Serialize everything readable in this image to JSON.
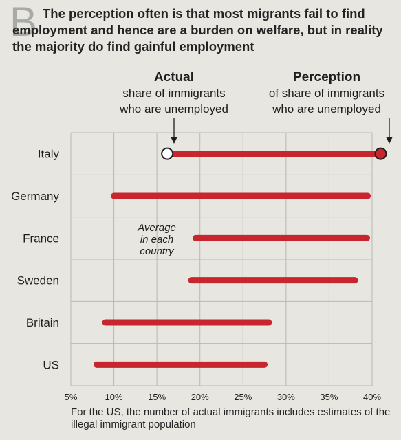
{
  "headline": {
    "dropcap": "B",
    "text": "The perception often is that most migrants fail to find employment and hence are a burden on welfare, but in reality the majority do find gainful employment"
  },
  "annotations": {
    "actual_title": "Actual",
    "actual_sub1": "share of immigrants",
    "actual_sub2": "who are unemployed",
    "perception_title": "Perception",
    "perception_sub1": "of share of immigrants",
    "perception_sub2": "who are unemployed",
    "average_1": "Average",
    "average_2": "in each",
    "average_3": "country"
  },
  "footnote": "For the US, the number of actual immigrants includes estimates of the illegal immigrant population",
  "colors": {
    "bar": "#c8262e",
    "grid": "#b8b8b4",
    "text": "#1e1e1e"
  },
  "chart_data": {
    "type": "dumbbell",
    "categories": [
      "Italy",
      "Germany",
      "France",
      "Sweden",
      "Britain",
      "US"
    ],
    "series": [
      {
        "name": "Actual",
        "values": [
          16.2,
          10.0,
          19.5,
          19.0,
          9.0,
          8.0
        ]
      },
      {
        "name": "Perception",
        "values": [
          41.0,
          39.5,
          39.4,
          38.0,
          28.0,
          27.5
        ]
      }
    ],
    "xticks": [
      "5%",
      "10%",
      "15%",
      "20%",
      "25%",
      "30%",
      "35%",
      "40%"
    ],
    "xtick_values": [
      5,
      10,
      15,
      20,
      25,
      30,
      35,
      40
    ],
    "xlim": [
      5,
      41
    ],
    "grid": true
  }
}
